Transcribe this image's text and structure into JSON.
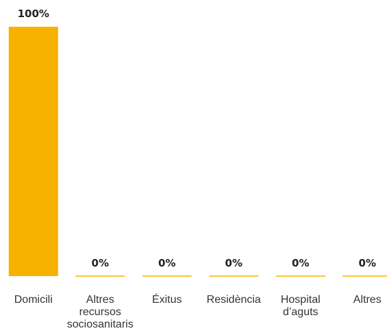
{
  "chart_data": {
    "type": "bar",
    "categories": [
      [
        "Domicili"
      ],
      [
        "Altres",
        "recursos",
        "sociosanitaris"
      ],
      [
        "Éxitus"
      ],
      [
        "Residència"
      ],
      [
        "Hospital",
        "d’aguts"
      ],
      [
        "Altres"
      ]
    ],
    "values": [
      100,
      0,
      0,
      0,
      0,
      0
    ],
    "value_labels": [
      "100%",
      "0%",
      "0%",
      "0%",
      "0%",
      "0%"
    ],
    "unit": "%",
    "ylim": [
      0,
      100
    ],
    "title": "",
    "xlabel": "",
    "ylabel": "",
    "grid": false,
    "legend": "none",
    "colors": {
      "bar": "#F7B100",
      "value_text": "#222222",
      "category_text": "#333333"
    }
  }
}
